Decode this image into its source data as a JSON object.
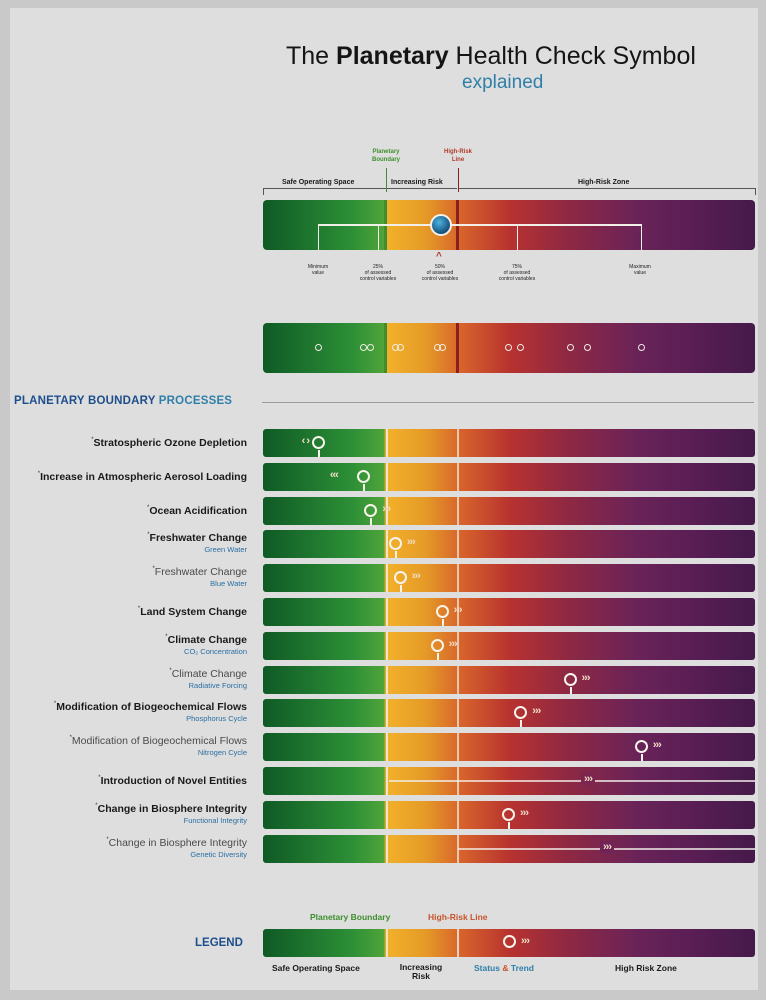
{
  "title": {
    "prefix": "The ",
    "bold": "Planetary",
    "suffix": " Health Check Symbol"
  },
  "subtitle": "explained",
  "key": {
    "planetary_boundary_label": "Planetary\nBoundary",
    "high_risk_line_label": "High-Risk\nLine",
    "zones": [
      "Safe Operating Space",
      "Increasing Risk",
      "High-Risk Zone"
    ],
    "ticks": [
      "Minimum\nvalue",
      "25%\nof assessed\ncontrol variables",
      "50%\nof assessed\ncontrol variables",
      "75%\nof assessed\ncontrol variables",
      "Maximum\nvalue"
    ]
  },
  "section_title": {
    "bold": "PLANETARY BOUNDARY",
    "rest": " PROCESSES"
  },
  "processes": [
    {
      "name": "Stratospheric Ozone Depletion",
      "sub": "",
      "light": false,
      "marker": 0.113,
      "range": [
        0.085,
        0.145
      ],
      "trend": "stable"
    },
    {
      "name": "Increase in Atmospheric Aerosol Loading",
      "sub": "",
      "light": false,
      "marker": 0.205,
      "range": [
        0.205,
        0.205
      ],
      "trend": "improving"
    },
    {
      "name": "Ocean Acidification",
      "sub": "",
      "light": false,
      "marker": 0.22,
      "range": [
        0.22,
        0.22
      ],
      "trend": "worsening"
    },
    {
      "name": "Freshwater Change",
      "sub": "Green Water",
      "light": false,
      "marker": 0.27,
      "range": [
        0.27,
        0.27
      ],
      "trend": "worsening"
    },
    {
      "name": "Freshwater Change",
      "sub": "Blue Water",
      "light": true,
      "marker": 0.28,
      "range": [
        0.28,
        0.28
      ],
      "trend": "worsening"
    },
    {
      "name": "Land System Change",
      "sub": "",
      "light": false,
      "marker": 0.365,
      "range": [
        0.365,
        0.365
      ],
      "trend": "worsening"
    },
    {
      "name": "Climate Change",
      "sub": "CO₂ Concentration",
      "light": false,
      "marker": 0.355,
      "range": [
        0.355,
        0.355
      ],
      "trend": "worsening"
    },
    {
      "name": "Climate Change",
      "sub": "Radiative Forcing",
      "light": true,
      "marker": 0.625,
      "range": [
        0.625,
        0.625
      ],
      "trend": "worsening"
    },
    {
      "name": "Modification of Biogeochemical Flows",
      "sub": "Phosphorus Cycle",
      "light": false,
      "marker": 0.525,
      "range": [
        0.525,
        0.525
      ],
      "trend": "worsening"
    },
    {
      "name": "Modification of Biogeochemical Flows",
      "sub": "Nitrogen Cycle",
      "light": true,
      "marker": 0.77,
      "range": [
        0.77,
        0.77
      ],
      "trend": "worsening"
    },
    {
      "name": "Introduction of Novel Entities",
      "sub": "",
      "light": false,
      "marker": null,
      "range": null,
      "trend": "worsening"
    },
    {
      "name": "Change in Biosphere Integrity",
      "sub": "Functional Integrity",
      "light": false,
      "marker": 0.5,
      "range": [
        0.5,
        0.5
      ],
      "trend": "worsening"
    },
    {
      "name": "Change in Biosphere Integrity",
      "sub": "Genetic Diversity",
      "light": true,
      "marker": null,
      "range": null,
      "trend": "worsening"
    }
  ],
  "legend": {
    "title": "LEGEND",
    "planetary_boundary": "Planetary Boundary",
    "high_risk_line": "High-Risk Line",
    "safe": "Safe Operating Space",
    "increasing": "Increasing\nRisk",
    "status_a": "Status",
    "status_amp": " & ",
    "status_b": "Trend",
    "high_risk_zone": "High Risk Zone"
  },
  "colors": {
    "safe": "#2c8f36",
    "boundary_line": "#3e8f2d",
    "high_risk_line": "#8a1f1f",
    "accent_blue": "#1d4e8c",
    "high_risk_text": "#c6532b"
  }
}
